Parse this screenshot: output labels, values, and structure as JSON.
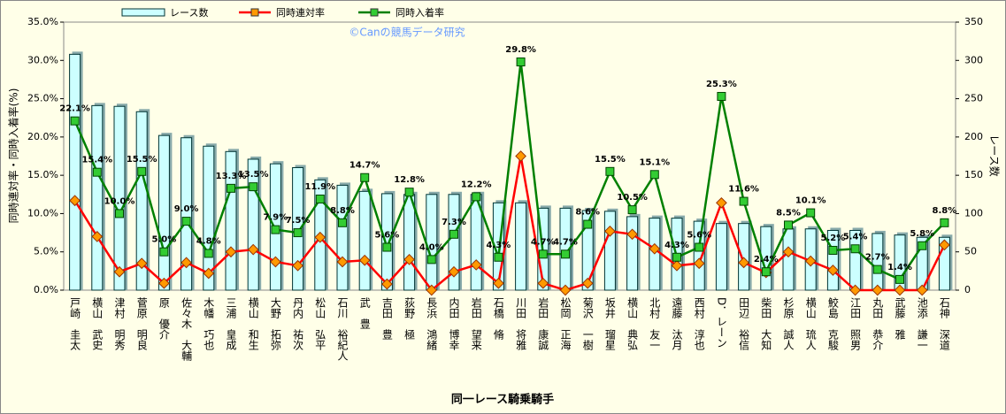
{
  "chart_data": {
    "type": "combo",
    "watermark": "©Canの競馬データ研究",
    "x_label": "同一レース騎乗騎手",
    "y_label": "同時連対率・同時入着率(%)",
    "y2_label": "レース数",
    "categories": [
      "戸崎　圭太",
      "横山　武史",
      "津村　明秀",
      "菅原　明良",
      "原　優介",
      "佐々木　大輔",
      "木幡　巧也",
      "三浦　皇成",
      "横山　和生",
      "大野　拓弥",
      "丹内　祐次",
      "松山　弘平",
      "石川　裕紀人",
      "武　豊",
      "吉田　豊",
      "荻野　極",
      "長浜　鴻緒",
      "内田　博幸",
      "岩田　望来",
      "石橋　脩",
      "川田　将雅",
      "岩田　康誠",
      "松岡　正海",
      "菊沢　一樹",
      "坂井　瑠星",
      "横山　典弘",
      "北村　友一",
      "遠藤　汰月",
      "西村　淳也",
      "D．レーン",
      "田辺　裕信",
      "柴田　大知",
      "杉原　誠人",
      "横山　琉人",
      "鮫島　克駿",
      "江田　照男",
      "丸田　恭介",
      "武藤　雅",
      "池添　謙一",
      "石神　深道"
    ],
    "series": [
      {
        "name": "レース数",
        "kind": "bar",
        "axis": "y2",
        "color": "#ccffff",
        "values": [
          308,
          241,
          240,
          233,
          202,
          199,
          188,
          181,
          171,
          165,
          160,
          144,
          137,
          129,
          126,
          125,
          125,
          125,
          125,
          114,
          114,
          107,
          107,
          104,
          103,
          96,
          94,
          94,
          90,
          87,
          87,
          83,
          80,
          80,
          78,
          78,
          74,
          72,
          69,
          69
        ]
      },
      {
        "name": "同時連対率",
        "kind": "line",
        "color": "#ff0000",
        "marker_color": "#ff9900",
        "values": [
          11.7,
          7.0,
          2.4,
          3.5,
          0.9,
          3.6,
          2.2,
          5.0,
          5.3,
          3.7,
          3.2,
          6.9,
          3.7,
          3.9,
          0.8,
          4.0,
          0,
          2.4,
          3.3,
          0.9,
          17.5,
          0.9,
          0,
          0.9,
          7.7,
          7.3,
          5.4,
          3.2,
          3.5,
          11.4,
          3.6,
          2.3,
          5.0,
          3.8,
          2.6,
          0,
          0,
          0,
          0,
          5.9
        ]
      },
      {
        "name": "同時入着率",
        "kind": "line",
        "color": "#008000",
        "marker_color": "#33cc33",
        "values": [
          22.1,
          15.4,
          10.0,
          15.5,
          5.0,
          9.0,
          4.8,
          13.3,
          13.5,
          7.9,
          7.5,
          11.9,
          8.8,
          14.7,
          5.6,
          12.8,
          4.0,
          7.3,
          12.2,
          4.3,
          29.8,
          4.7,
          4.7,
          8.6,
          15.5,
          10.5,
          15.1,
          4.3,
          5.6,
          25.3,
          11.6,
          2.4,
          8.5,
          10.1,
          5.2,
          5.4,
          2.7,
          1.4,
          5.8,
          8.8
        ],
        "value_labels": [
          "22.1%",
          "15.4%",
          "10.0%",
          "15.5%",
          "5.0%",
          "9.0%",
          "4.8%",
          "13.3%",
          "13.5%",
          "7.9%",
          "7.5%",
          "11.9%",
          "8.8%",
          "14.7%",
          "5.6%",
          "12.8%",
          "4.0%",
          "7.3%",
          "12.2%",
          "4.3%",
          "29.8%",
          "4.7%",
          "4.7%",
          "8.6%",
          "15.5%",
          "10.5%",
          "15.1%",
          "4.3%",
          "5.6%",
          "25.3%",
          "11.6%",
          "2.4%",
          "8.5%",
          "10.1%",
          "5.2%",
          "5.4%",
          "2.7%",
          "1.4%",
          "5.8%",
          "8.8%"
        ]
      }
    ],
    "ylim": [
      0,
      35
    ],
    "yticks": [
      {
        "value": 0,
        "label": "0.0%"
      },
      {
        "value": 5,
        "label": "5.0%"
      },
      {
        "value": 10,
        "label": "10.0%"
      },
      {
        "value": 15,
        "label": "15.0%"
      },
      {
        "value": 20,
        "label": "20.0%"
      },
      {
        "value": 25,
        "label": "25.0%"
      },
      {
        "value": 30,
        "label": "30.0%"
      },
      {
        "value": 35,
        "label": "35.0%"
      }
    ],
    "y2lim": [
      0,
      350
    ],
    "y2ticks": [
      0,
      50,
      100,
      150,
      200,
      250,
      300,
      350
    ],
    "legend": "top"
  }
}
